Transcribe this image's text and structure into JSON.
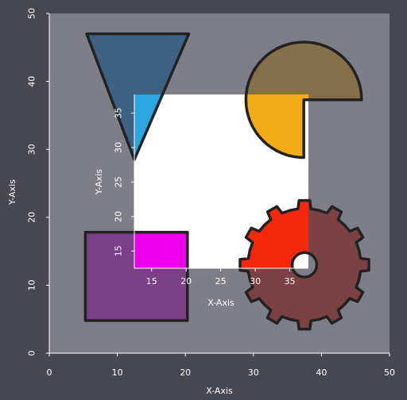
{
  "chart_data": [
    {
      "type": "scatter",
      "xlabel": "X-Axis",
      "ylabel": "Y-Axis",
      "xlim": [
        0,
        50
      ],
      "ylim": [
        0,
        50
      ],
      "xticks": [
        0,
        10,
        20,
        30,
        40,
        50
      ],
      "yticks": [
        0,
        10,
        20,
        30,
        40,
        50
      ],
      "grid": false,
      "shapes": [
        {
          "kind": "polygon",
          "fill": "#3e6282",
          "points": [
            [
              5.5,
              47
            ],
            [
              20.5,
              47
            ],
            [
              12.5,
              28.5
            ]
          ]
        },
        {
          "kind": "rectangle",
          "fill": "#7b3f88",
          "x": 5.3,
          "y": 4.8,
          "width": 15,
          "height": 13
        },
        {
          "kind": "pie-sector",
          "fill": "#867049",
          "center": [
            37.4,
            37.3
          ],
          "radius": 8.5,
          "theta1": 0,
          "theta2": 270
        },
        {
          "kind": "gear",
          "fill": "#7b4143",
          "center": [
            37.5,
            13
          ],
          "outer_radius": 9.5,
          "inner_radius": 8.3,
          "teeth": 12,
          "hole_radius": 1.8
        }
      ]
    },
    {
      "type": "scatter",
      "xlabel": "X-Axis",
      "ylabel": "Y-Axis",
      "xlim": [
        12.5,
        37.7
      ],
      "ylim": [
        12.5,
        37.7
      ],
      "xticks": [
        15,
        20,
        25,
        30,
        35
      ],
      "yticks": [
        15,
        20,
        25,
        30,
        35
      ],
      "grid": false,
      "background": "#ffffff"
    }
  ],
  "colors": {
    "page_bg": "#474751",
    "outer_plot_bg": "#7e7e89",
    "inset_bg": "#ffffff",
    "triangle_highlight": "#2ba6de",
    "rectangle_highlight": "#ec00ec",
    "wedge_highlight": "#f2ac15",
    "gear_highlight": "#f5280e",
    "outline": "#222222"
  }
}
